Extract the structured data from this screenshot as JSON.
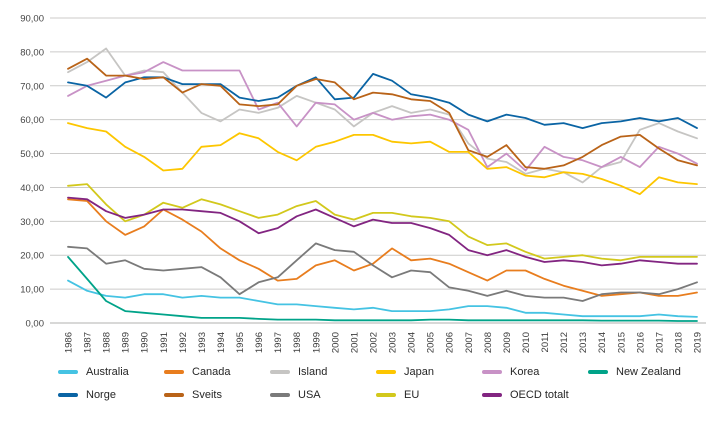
{
  "chart_data": {
    "type": "line",
    "x": [
      1986,
      1987,
      1988,
      1989,
      1990,
      1991,
      1992,
      1993,
      1994,
      1995,
      1996,
      1997,
      1998,
      1999,
      2000,
      2001,
      2002,
      2003,
      2004,
      2005,
      2006,
      2007,
      2008,
      2009,
      2010,
      2011,
      2012,
      2013,
      2014,
      2015,
      2016,
      2017,
      2018,
      2019
    ],
    "ylim": [
      0,
      90
    ],
    "yticks": [
      {
        "value": 0,
        "label": "0,00"
      },
      {
        "value": 10,
        "label": "10,00"
      },
      {
        "value": 20,
        "label": "20,00"
      },
      {
        "value": 30,
        "label": "30,00"
      },
      {
        "value": 40,
        "label": "40,00"
      },
      {
        "value": 50,
        "label": "50,00"
      },
      {
        "value": 60,
        "label": "60,00"
      },
      {
        "value": 70,
        "label": "70,00"
      },
      {
        "value": 80,
        "label": "80,00"
      },
      {
        "value": 90,
        "label": "90,00"
      }
    ],
    "grid": true,
    "legend_position": "bottom",
    "series": [
      {
        "id": "australia",
        "name": "Australia",
        "color": "#45c3e3",
        "values": [
          12.5,
          9.5,
          8,
          7.5,
          8.5,
          8.5,
          7.5,
          8,
          7.5,
          7.5,
          6.5,
          5.5,
          5.5,
          5,
          4.5,
          4,
          4.5,
          3.5,
          3.5,
          3.5,
          4,
          5,
          5,
          4.5,
          3,
          3,
          2.5,
          2,
          2,
          2,
          2,
          2.5,
          2,
          1.8
        ]
      },
      {
        "id": "canada",
        "name": "Canada",
        "color": "#e87d1e",
        "values": [
          36.5,
          36,
          30,
          26,
          28.5,
          33.5,
          30.5,
          27,
          22,
          18.5,
          16,
          12.5,
          13,
          17,
          18.5,
          15.5,
          17.5,
          22,
          18.5,
          19,
          17.5,
          15,
          12.5,
          15.5,
          15.5,
          13,
          11,
          9.5,
          8,
          8.5,
          9,
          8,
          8,
          9
        ]
      },
      {
        "id": "island",
        "name": "Island",
        "color": "#c6c5c3",
        "values": [
          74,
          77,
          81,
          73,
          74.5,
          74,
          68,
          62,
          59.5,
          63,
          62,
          63.5,
          67,
          65,
          63,
          58,
          62,
          64,
          62,
          63,
          61.5,
          53,
          48.5,
          47.5,
          44,
          45.5,
          44.5,
          41.5,
          46,
          47.5,
          57,
          59,
          56.5,
          54.5
        ]
      },
      {
        "id": "japan",
        "name": "Japan",
        "color": "#fdc600",
        "values": [
          59,
          57.5,
          56.5,
          52,
          49,
          45,
          45.5,
          52,
          52.5,
          56,
          54.5,
          50.5,
          48,
          52,
          53.5,
          55.5,
          55.5,
          53.5,
          53,
          53.5,
          50.5,
          50.5,
          45.5,
          46,
          43.5,
          43,
          44.5,
          44,
          42.5,
          40.5,
          38,
          43,
          41.5,
          41
        ]
      },
      {
        "id": "korea",
        "name": "Korea",
        "color": "#c892c6",
        "values": [
          67,
          70,
          71.5,
          73,
          74,
          77,
          74.5,
          74.5,
          74.5,
          74.5,
          63,
          65,
          58,
          65,
          64.5,
          60,
          62,
          60,
          61,
          61.5,
          60,
          57,
          46,
          50,
          45,
          52,
          49,
          48,
          46,
          49,
          46,
          52,
          50,
          47
        ]
      },
      {
        "id": "new-zealand",
        "name": "New Zealand",
        "color": "#00a389",
        "values": [
          19.5,
          13,
          6.5,
          3.5,
          3,
          2.5,
          2,
          1.5,
          1.5,
          1.5,
          1.2,
          1,
          1,
          1,
          0.8,
          0.8,
          0.8,
          0.8,
          0.8,
          1,
          1,
          0.8,
          0.8,
          0.8,
          0.8,
          0.8,
          0.8,
          0.8,
          0.7,
          0.7,
          0.7,
          0.7,
          0.6,
          0.6
        ]
      },
      {
        "id": "norge",
        "name": "Norge",
        "color": "#0a64a4",
        "values": [
          71,
          70,
          66.5,
          71,
          72.5,
          72.5,
          70.5,
          70.5,
          70.5,
          66.5,
          65.5,
          66.5,
          70,
          72.5,
          66,
          66.5,
          73.5,
          71.5,
          67.5,
          66.5,
          65,
          61.5,
          59.5,
          61.5,
          60.5,
          58.5,
          59,
          57.5,
          59,
          59.5,
          60.5,
          59.5,
          60.5,
          57.5
        ]
      },
      {
        "id": "sveits",
        "name": "Sveits",
        "color": "#b96318",
        "values": [
          75,
          78,
          73,
          73,
          72,
          72.5,
          68,
          70.5,
          70,
          64.5,
          64,
          64.5,
          70,
          72,
          71,
          66,
          68,
          67.5,
          66,
          65.5,
          62,
          51,
          49,
          52.5,
          46,
          45.5,
          46.5,
          49,
          52.5,
          55,
          55.5,
          51.5,
          48,
          46.5
        ]
      },
      {
        "id": "usa",
        "name": "USA",
        "color": "#7a7a7a",
        "values": [
          22.5,
          22,
          17.5,
          18.5,
          16,
          15.5,
          16,
          16.5,
          13.5,
          8.5,
          12,
          13.5,
          18.5,
          23.5,
          21.5,
          21,
          17,
          13.5,
          15.5,
          15,
          10.5,
          9.5,
          8,
          9.5,
          8,
          7.5,
          7.5,
          6.5,
          8.5,
          9,
          9,
          8.5,
          10,
          12
        ]
      },
      {
        "id": "eu",
        "name": "EU",
        "color": "#d2c81c",
        "values": [
          40.5,
          41,
          35,
          30,
          32,
          35.5,
          34,
          36.5,
          35,
          33,
          31,
          32,
          34.5,
          36,
          32,
          30.5,
          32.5,
          32.5,
          31.5,
          31,
          30,
          25.5,
          23,
          23.5,
          21,
          19,
          19.5,
          20,
          19,
          18.5,
          19.5,
          19.5,
          19.5,
          19.5
        ]
      },
      {
        "id": "oecd-totalt",
        "name": "OECD totalt",
        "color": "#822581",
        "values": [
          37,
          36.5,
          33,
          31,
          32,
          33.5,
          33.5,
          33,
          32.5,
          30,
          26.5,
          28,
          31.5,
          33.5,
          31,
          28.5,
          30.5,
          29.5,
          29.5,
          28,
          26,
          21.5,
          20,
          21.5,
          19.5,
          18,
          18.5,
          18,
          17,
          17.5,
          18.5,
          18,
          17.5,
          17.5
        ]
      }
    ]
  }
}
